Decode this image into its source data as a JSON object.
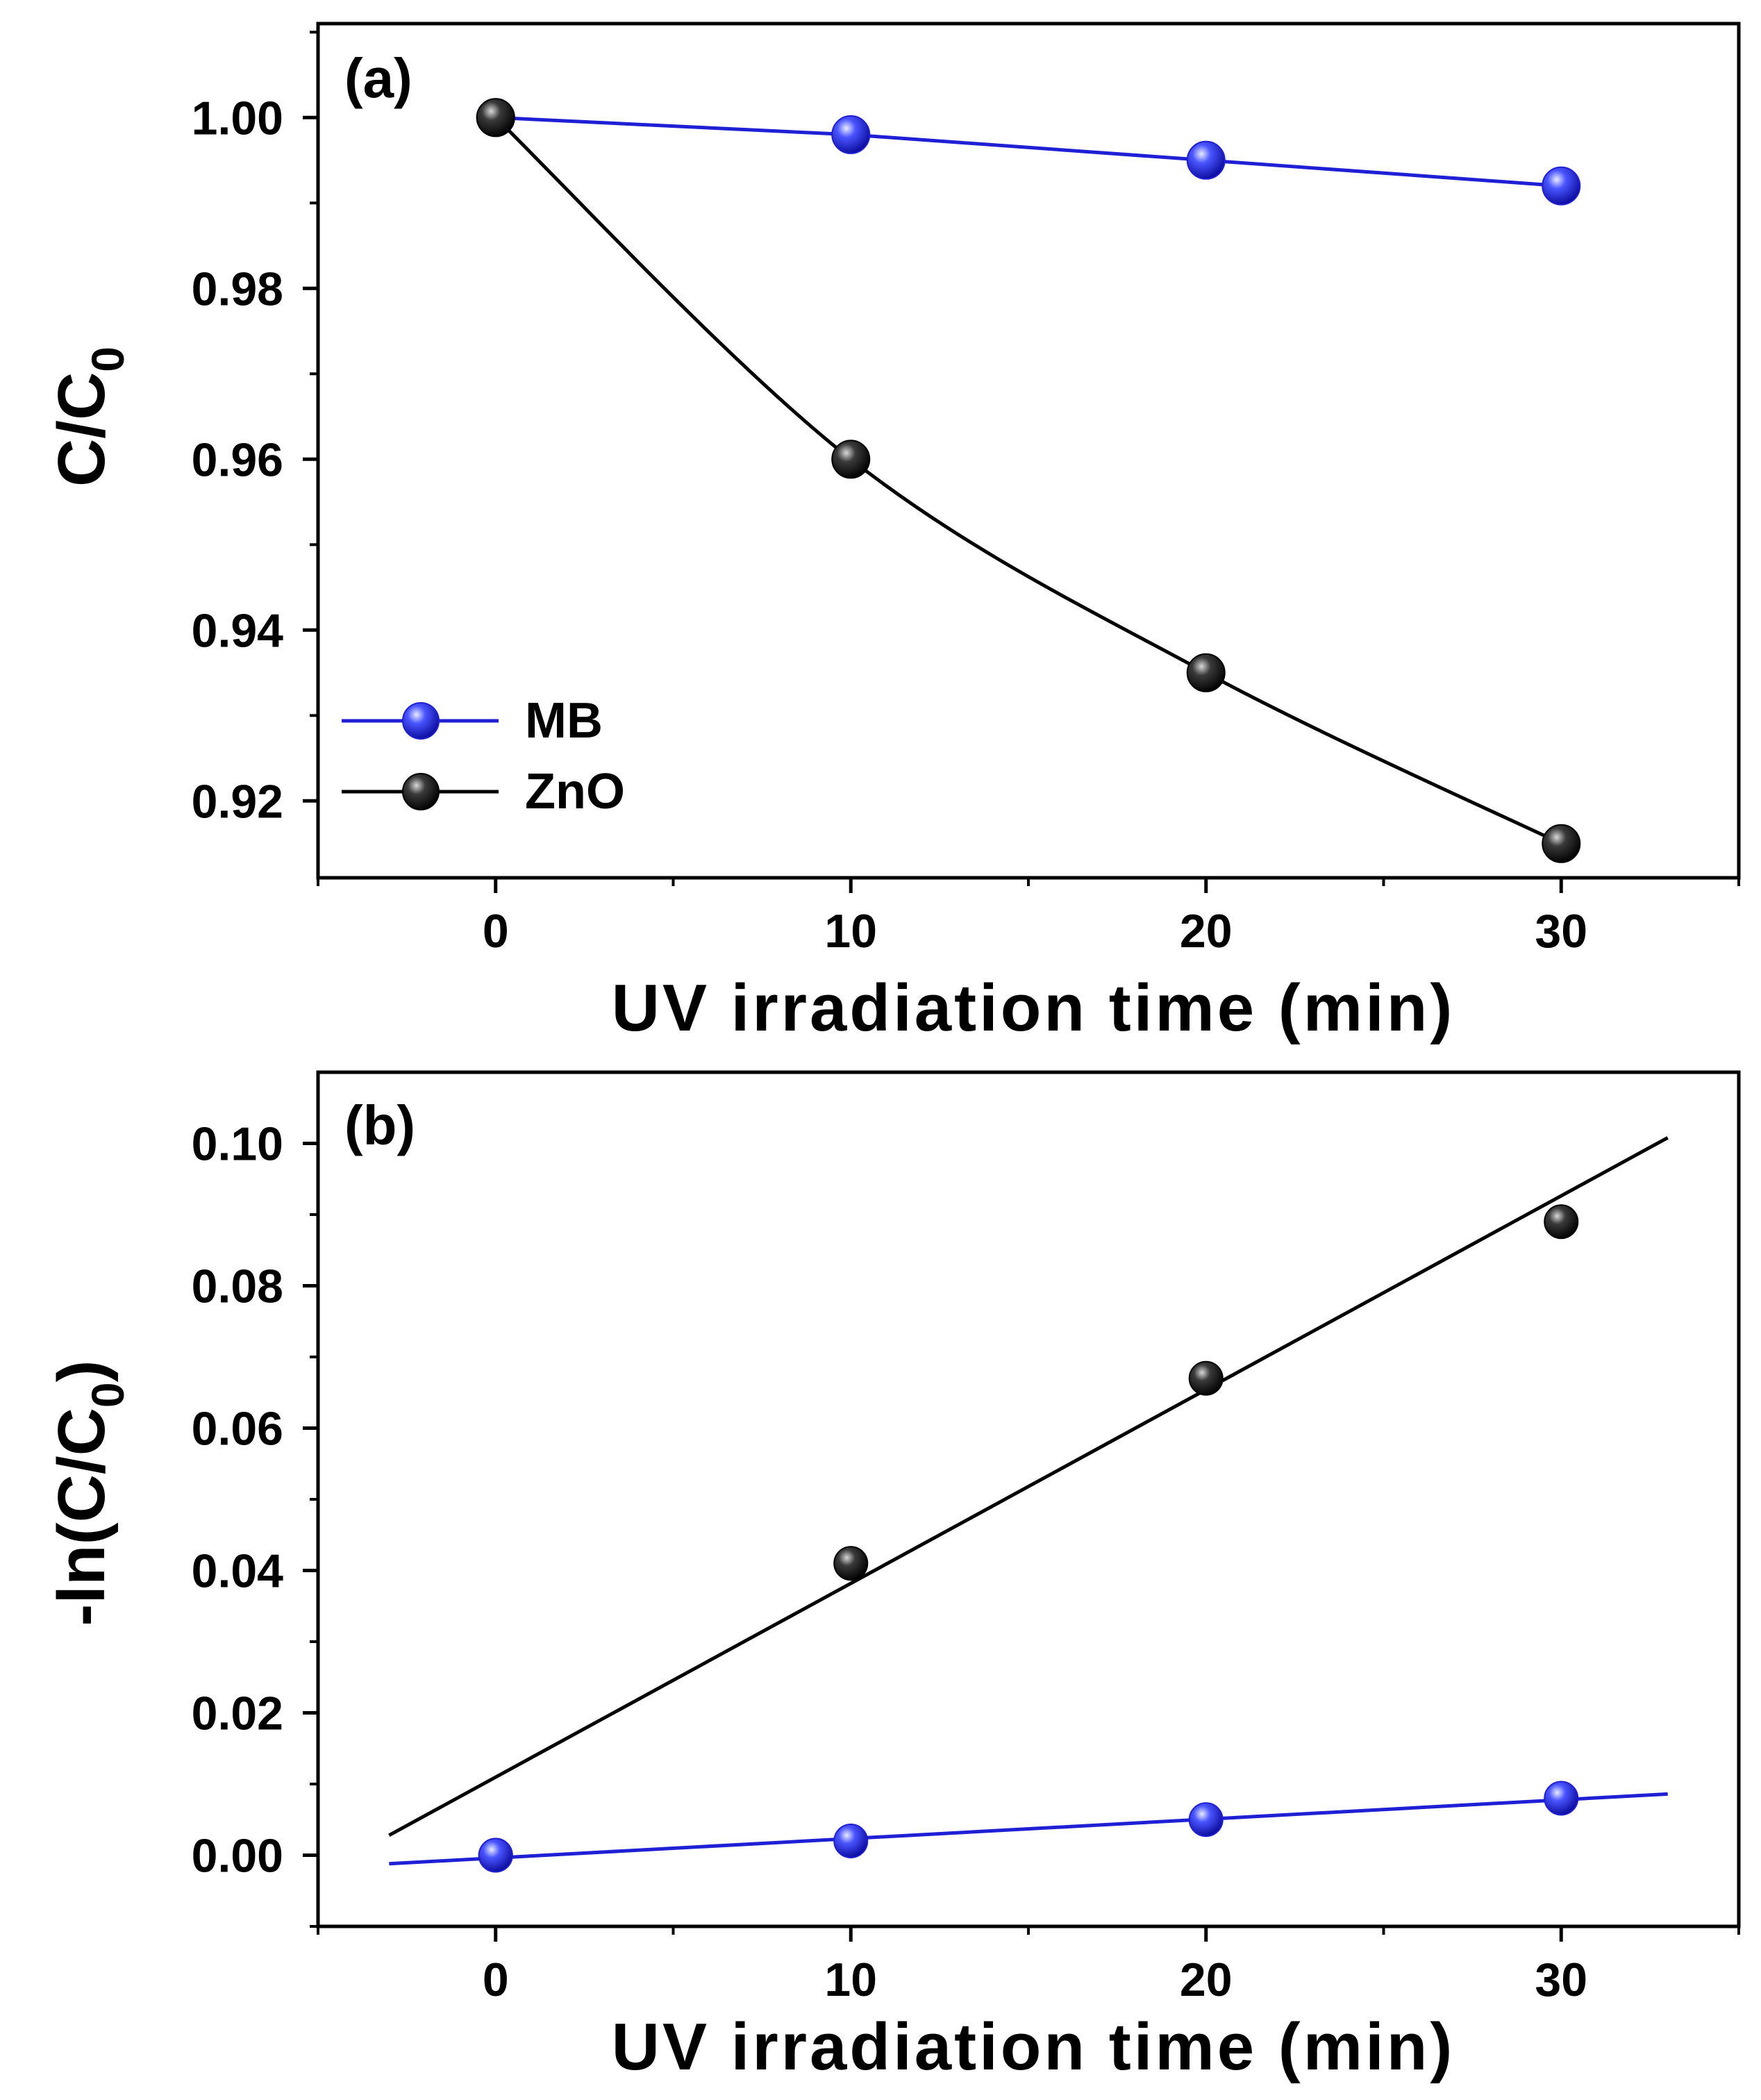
{
  "colors": {
    "mb": "#1f1fd6",
    "zno": "#000000",
    "axis": "#000000",
    "background": "#ffffff"
  },
  "chart_data": [
    {
      "id": "a",
      "type": "line",
      "panel_label": "(a)",
      "xlabel": "UV irradiation time (min)",
      "ylabel": {
        "main": "C/C",
        "sub": "0",
        "close": ""
      },
      "xlim": [
        -5,
        35
      ],
      "ylim": [
        0.911,
        1.011
      ],
      "xticks": [
        0,
        10,
        20,
        30
      ],
      "xtick_labels": [
        "0",
        "10",
        "20",
        "30"
      ],
      "yticks": [
        0.92,
        0.94,
        0.96,
        0.98,
        1.0
      ],
      "ytick_labels": [
        "0.92",
        "0.94",
        "0.96",
        "0.98",
        "1.00"
      ],
      "x": [
        0,
        10,
        20,
        30
      ],
      "series": [
        {
          "key": "mb",
          "name": "MB",
          "values": [
            1.0,
            0.998,
            0.995,
            0.992
          ],
          "smooth": false
        },
        {
          "key": "zno",
          "name": "ZnO",
          "values": [
            1.0,
            0.96,
            0.935,
            0.915
          ],
          "smooth": true
        }
      ],
      "legend": {
        "position": "bottom-left",
        "entries": [
          "MB",
          "ZnO"
        ]
      }
    },
    {
      "id": "b",
      "type": "scatter",
      "panel_label": "(b)",
      "xlabel": "UV irradiation time (min)",
      "ylabel": {
        "main": "-ln(C/C",
        "sub": "0",
        "close": ")"
      },
      "xlim": [
        -5,
        35
      ],
      "ylim": [
        -0.01,
        0.11
      ],
      "xticks": [
        0,
        10,
        20,
        30
      ],
      "xtick_labels": [
        "0",
        "10",
        "20",
        "30"
      ],
      "yticks": [
        0.0,
        0.02,
        0.04,
        0.06,
        0.08,
        0.1
      ],
      "ytick_labels": [
        "0.00",
        "0.02",
        "0.04",
        "0.06",
        "0.08",
        "0.10"
      ],
      "x": [
        0,
        10,
        20,
        30
      ],
      "series": [
        {
          "key": "zno",
          "name": "ZnO",
          "values": [
            0.0,
            0.041,
            0.067,
            0.089
          ],
          "fit": {
            "x": [
              -3,
              33
            ],
            "y": [
              0.0028,
              0.1008
            ]
          }
        },
        {
          "key": "mb",
          "name": "MB",
          "values": [
            0.0,
            0.002,
            0.005,
            0.008
          ],
          "fit": {
            "x": [
              -3,
              33
            ],
            "y": [
              -0.0012,
              0.0086
            ]
          }
        }
      ]
    }
  ]
}
